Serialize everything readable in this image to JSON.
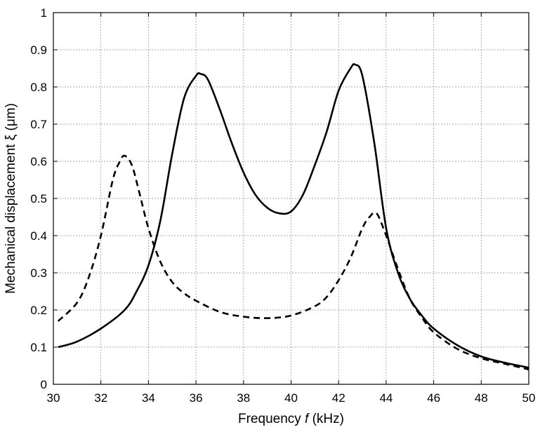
{
  "chart_data": {
    "type": "line",
    "xlabel_prefix": "Frequency ",
    "xlabel_symbol": "f",
    "xlabel_unit": " (kHz)",
    "ylabel": "Mechanical displacement ξ (μm)",
    "xlim": [
      30,
      50
    ],
    "ylim": [
      0,
      1
    ],
    "grid": true,
    "x_ticks": [
      "30",
      "32",
      "34",
      "36",
      "38",
      "40",
      "42",
      "44",
      "46",
      "48",
      "50"
    ],
    "y_ticks": [
      "0",
      "0.1",
      "0.2",
      "0.3",
      "0.4",
      "0.5",
      "0.6",
      "0.7",
      "0.8",
      "0.9",
      "1"
    ],
    "series": [
      {
        "style": "solid",
        "color": "#000000",
        "x": [
          30.2,
          31,
          32,
          33,
          33.5,
          34,
          34.5,
          35,
          35.5,
          36,
          36.2,
          36.5,
          37,
          37.5,
          38,
          38.5,
          39,
          39.5,
          40,
          40.5,
          41,
          41.5,
          42,
          42.5,
          42.7,
          43,
          43.5,
          44,
          44.5,
          45,
          45.5,
          46,
          47,
          48,
          49,
          50
        ],
        "y": [
          0.1,
          0.115,
          0.15,
          0.2,
          0.25,
          0.32,
          0.44,
          0.62,
          0.77,
          0.83,
          0.835,
          0.82,
          0.74,
          0.65,
          0.57,
          0.51,
          0.475,
          0.46,
          0.465,
          0.51,
          0.59,
          0.68,
          0.79,
          0.85,
          0.86,
          0.83,
          0.65,
          0.42,
          0.3,
          0.23,
          0.185,
          0.15,
          0.105,
          0.075,
          0.058,
          0.045
        ]
      },
      {
        "style": "dashed",
        "color": "#000000",
        "x": [
          30.2,
          31,
          31.5,
          32,
          32.5,
          32.8,
          33,
          33.3,
          33.6,
          34,
          34.5,
          35,
          35.5,
          36,
          37,
          38,
          39,
          40,
          41,
          41.5,
          42,
          42.5,
          43,
          43.3,
          43.6,
          44,
          44.5,
          45,
          45.5,
          46,
          47,
          48,
          49,
          50
        ],
        "y": [
          0.17,
          0.22,
          0.29,
          0.4,
          0.55,
          0.6,
          0.615,
          0.59,
          0.52,
          0.42,
          0.33,
          0.275,
          0.245,
          0.225,
          0.195,
          0.182,
          0.178,
          0.185,
          0.21,
          0.235,
          0.28,
          0.34,
          0.42,
          0.45,
          0.46,
          0.4,
          0.31,
          0.23,
          0.18,
          0.14,
          0.095,
          0.07,
          0.055,
          0.04
        ]
      }
    ]
  }
}
